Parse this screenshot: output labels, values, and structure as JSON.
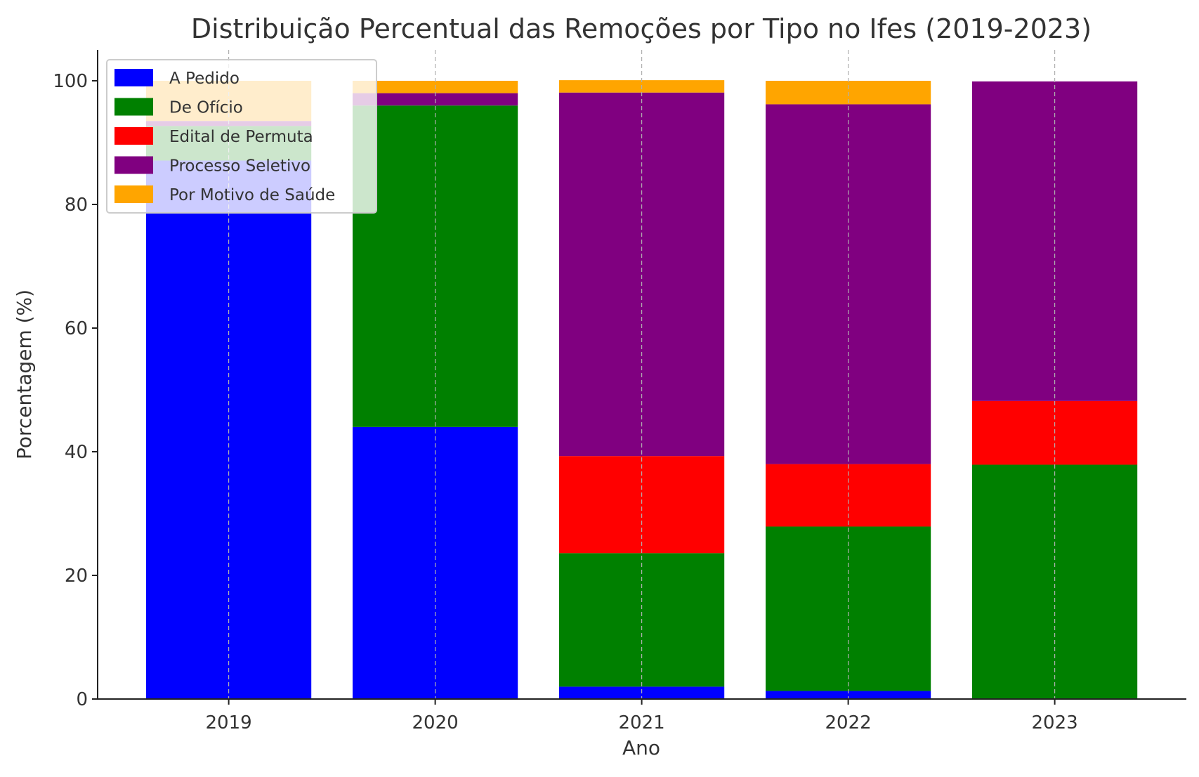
{
  "chart_data": {
    "type": "bar",
    "stacked": true,
    "title": "Distribuição Percentual das Remoções por Tipo no Ifes (2019-2023)",
    "xlabel": "Ano",
    "ylabel": "Porcentagem (%)",
    "categories": [
      "2019",
      "2020",
      "2021",
      "2022",
      "2023"
    ],
    "ylim": [
      0,
      105
    ],
    "yticks": [
      0,
      20,
      40,
      60,
      80,
      100
    ],
    "grid": "vertical-dashed",
    "legend_position": "top-left",
    "series": [
      {
        "name": "A Pedido",
        "color": "#0000ff",
        "values": [
          87.1,
          44.0,
          2.0,
          1.3,
          0.0
        ]
      },
      {
        "name": "De Ofício",
        "color": "#008000",
        "values": [
          5.6,
          52.0,
          21.6,
          26.6,
          37.9
        ]
      },
      {
        "name": "Edital de Permuta",
        "color": "#ff0000",
        "values": [
          0.0,
          0.0,
          15.7,
          10.1,
          10.3
        ]
      },
      {
        "name": "Processo Seletivo",
        "color": "#800080",
        "values": [
          0.8,
          2.0,
          58.8,
          58.2,
          51.7
        ]
      },
      {
        "name": "Por Motivo de Saúde",
        "color": "#ffa500",
        "values": [
          6.5,
          2.0,
          2.0,
          3.8,
          0.0
        ]
      }
    ]
  }
}
